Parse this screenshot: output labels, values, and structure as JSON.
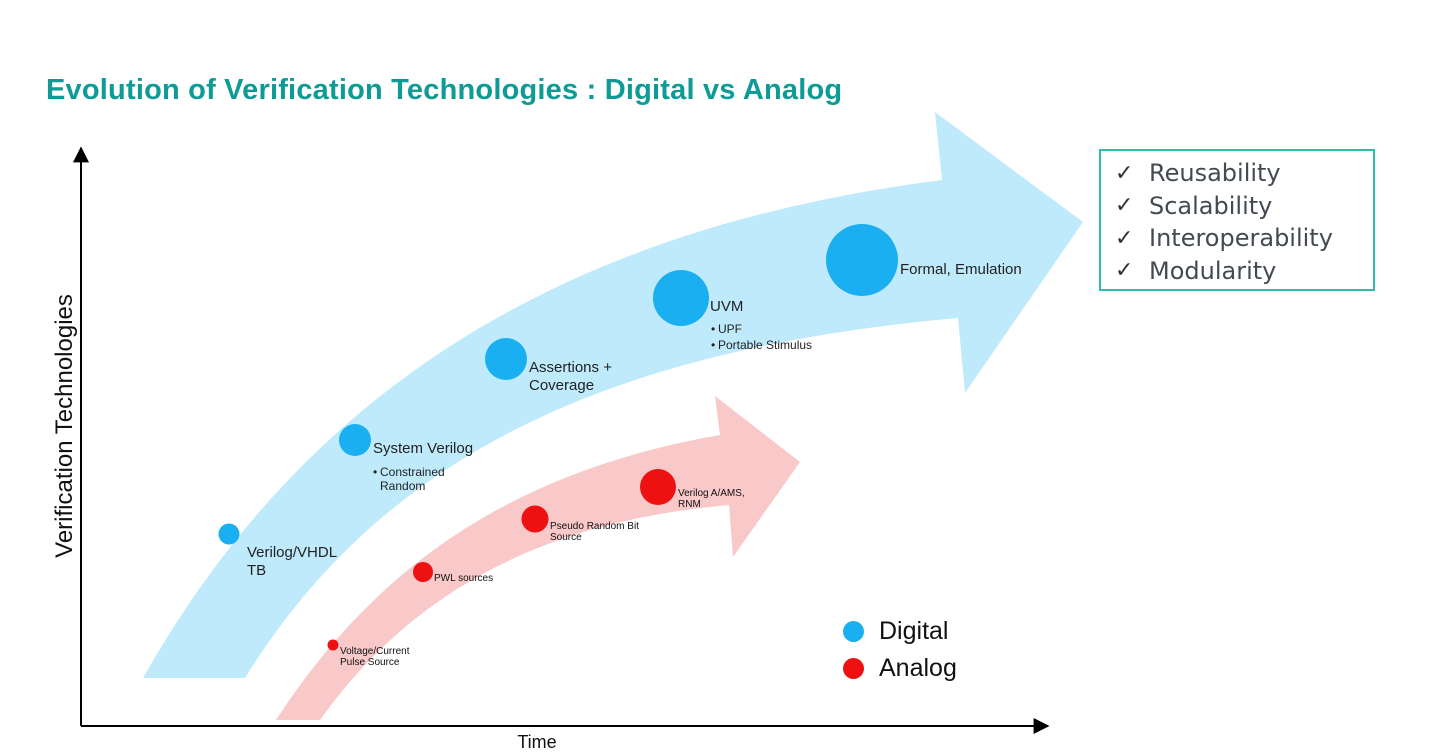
{
  "title": "Evolution of Verification Technologies : Digital vs Analog",
  "colors": {
    "title": "#0f9b95",
    "digital": "#1aaff0",
    "digital_band": "#bfeafb",
    "analog": "#ee1111",
    "analog_band": "#f9c8c8",
    "box_border": "#2fbfa7"
  },
  "axes": {
    "y_label": "Verification Technologies",
    "x_label": "Time"
  },
  "digital_milestones": [
    {
      "label_lines": [
        "Verilog/VHDL",
        "TB"
      ],
      "bullets": []
    },
    {
      "label_lines": [
        "System Verilog"
      ],
      "bullets": [
        [
          "Constrained",
          "Random"
        ]
      ]
    },
    {
      "label_lines": [
        "Assertions +",
        "Coverage"
      ],
      "bullets": []
    },
    {
      "label_lines": [
        "UVM"
      ],
      "bullets": [
        [
          "UPF"
        ],
        [
          "Portable Stimulus"
        ]
      ]
    },
    {
      "label_lines": [
        "Formal, Emulation"
      ],
      "bullets": []
    }
  ],
  "analog_milestones": [
    {
      "label_lines": [
        "Voltage/Current",
        "Pulse Source"
      ]
    },
    {
      "label_lines": [
        "PWL sources"
      ]
    },
    {
      "label_lines": [
        "Pseudo Random Bit",
        "Source"
      ]
    },
    {
      "label_lines": [
        "Verilog A/AMS,",
        "RNM"
      ]
    }
  ],
  "benefits": [
    {
      "check_icon": "check-icon",
      "label": "Reusability"
    },
    {
      "check_icon": "check-icon",
      "label": "Scalability"
    },
    {
      "check_icon": "check-icon",
      "label": "Interoperability"
    },
    {
      "check_icon": "check-icon",
      "label": "Modularity"
    }
  ],
  "legend": [
    {
      "label": "Digital",
      "color": "#1aaff0"
    },
    {
      "label": "Analog",
      "color": "#ee1111"
    }
  ]
}
